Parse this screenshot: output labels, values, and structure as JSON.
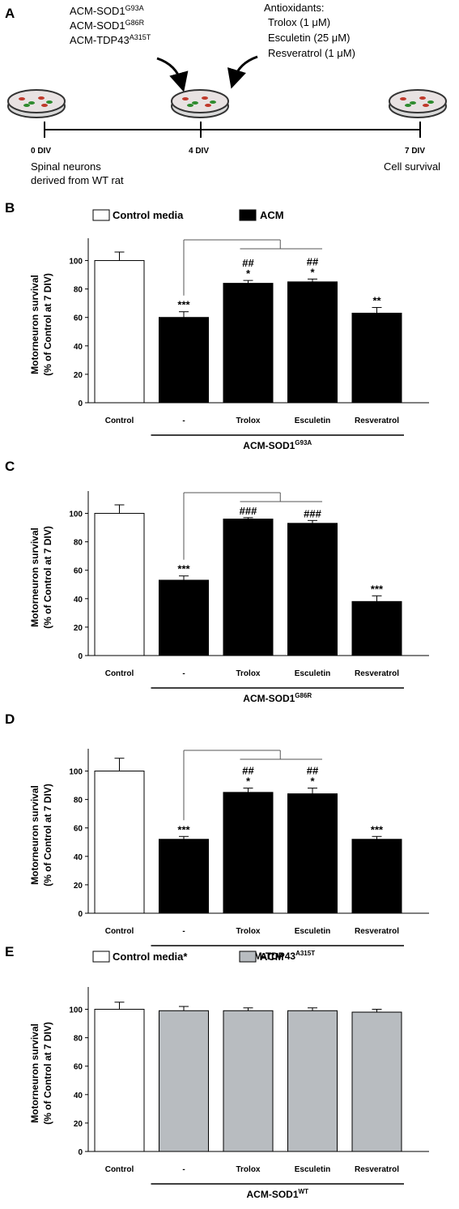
{
  "panel_a": {
    "label": "A",
    "constructs": [
      {
        "base": "ACM-SOD1",
        "sup": "G93A"
      },
      {
        "base": "ACM-SOD1",
        "sup": "G86R"
      },
      {
        "base": "ACM-TDP43",
        "sup": "A315T"
      }
    ],
    "antioxidants": {
      "title": "Antioxidants:",
      "items": [
        "Trolox (1 μM)",
        "Esculetin (25 μM)",
        "Resveratrol (1 μM)"
      ]
    },
    "timepoints": [
      {
        "label": "0 DIV",
        "caption": [
          "Spinal neurons",
          "derived from WT rat"
        ]
      },
      {
        "label": "4 DIV",
        "caption": []
      },
      {
        "label": "7 DIV",
        "caption": [
          "Cell survival"
        ]
      }
    ]
  },
  "chart_data": [
    {
      "panel": "B",
      "type": "bar",
      "legend": {
        "open": "Control media",
        "filled": "ACM"
      },
      "ylabel": [
        "Motorneuron survival",
        "(% of Control at 7 DIV)"
      ],
      "ylim": [
        0,
        110
      ],
      "yticks": [
        0,
        20,
        40,
        60,
        80,
        100
      ],
      "categories": [
        "Control",
        "-",
        "Trolox",
        "Esculetin",
        "Resveratrol"
      ],
      "values": [
        100,
        60,
        84,
        85,
        63
      ],
      "errors": [
        6,
        4,
        2,
        2,
        4
      ],
      "fills": [
        "white",
        "black",
        "black",
        "black",
        "black"
      ],
      "annotations": [
        [
          "",
          ""
        ],
        [
          "***",
          ""
        ],
        [
          "*",
          "##"
        ],
        [
          "*",
          "##"
        ],
        [
          "**",
          ""
        ]
      ],
      "bracket": true,
      "group": {
        "base": "ACM-SOD1",
        "sup": "G93A"
      }
    },
    {
      "panel": "C",
      "type": "bar",
      "ylabel": [
        "Motorneuron survival",
        "(% of Control at 7 DIV)"
      ],
      "ylim": [
        0,
        110
      ],
      "yticks": [
        0,
        20,
        40,
        60,
        80,
        100
      ],
      "categories": [
        "Control",
        "-",
        "Trolox",
        "Esculetin",
        "Resveratrol"
      ],
      "values": [
        100,
        53,
        96,
        93,
        38
      ],
      "errors": [
        6,
        3,
        1,
        2,
        4
      ],
      "fills": [
        "white",
        "black",
        "black",
        "black",
        "black"
      ],
      "annotations": [
        [
          "",
          ""
        ],
        [
          "***",
          ""
        ],
        [
          "",
          "###"
        ],
        [
          "",
          "###"
        ],
        [
          "***",
          ""
        ]
      ],
      "bracket": true,
      "group": {
        "base": "ACM-SOD1",
        "sup": "G86R"
      }
    },
    {
      "panel": "D",
      "type": "bar",
      "ylabel": [
        "Motorneuron survival",
        "(% of Control at 7 DIV)"
      ],
      "ylim": [
        0,
        110
      ],
      "yticks": [
        0,
        20,
        40,
        60,
        80,
        100
      ],
      "categories": [
        "Control",
        "-",
        "Trolox",
        "Esculetin",
        "Resveratrol"
      ],
      "values": [
        100,
        52,
        85,
        84,
        52
      ],
      "errors": [
        9,
        2,
        3,
        4,
        2
      ],
      "fills": [
        "white",
        "black",
        "black",
        "black",
        "black"
      ],
      "annotations": [
        [
          "",
          ""
        ],
        [
          "***",
          ""
        ],
        [
          "*",
          "##"
        ],
        [
          "*",
          "##"
        ],
        [
          "***",
          ""
        ]
      ],
      "bracket": true,
      "group": {
        "base": "ACM-TDP43",
        "sup": "A315T"
      }
    },
    {
      "panel": "E",
      "type": "bar",
      "legend": {
        "open": "Control media*",
        "filled": "ACM"
      },
      "ylabel": [
        "Motorneuron survival",
        "(% of Control at 7 DIV)"
      ],
      "ylim": [
        0,
        110
      ],
      "yticks": [
        0,
        20,
        40,
        60,
        80,
        100
      ],
      "categories": [
        "Control",
        "-",
        "Trolox",
        "Esculetin",
        "Resveratrol"
      ],
      "values": [
        100,
        99,
        99,
        99,
        98
      ],
      "errors": [
        5,
        3,
        2,
        2,
        2
      ],
      "fills": [
        "white",
        "gray",
        "gray",
        "gray",
        "gray"
      ],
      "annotations": [
        [
          "",
          ""
        ],
        [
          "",
          ""
        ],
        [
          "",
          ""
        ],
        [
          "",
          ""
        ],
        [
          "",
          ""
        ]
      ],
      "bracket": false,
      "group": {
        "base": "ACM-SOD1",
        "sup": "WT"
      }
    }
  ],
  "colors": {
    "white": "#ffffff",
    "black": "#000000",
    "gray": "#b8bcc0",
    "dish": "#d9d9d9"
  }
}
